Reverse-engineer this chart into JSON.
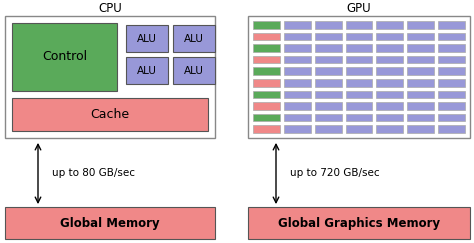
{
  "bg_color": "#ffffff",
  "cpu_title": "CPU",
  "gpu_title": "GPU",
  "control_color": "#5aaa5a",
  "control_label": "Control",
  "alu_color": "#9898d8",
  "cache_color": "#f08888",
  "cache_label": "Cache",
  "gpu_green_color": "#5aaa5a",
  "gpu_pink_color": "#f08888",
  "gpu_blue_color": "#9898d8",
  "mem_color": "#f08888",
  "mem_label": "Global Memory",
  "gmem_label": "Global Graphics Memory",
  "bw_cpu": "up to 80 GB/sec",
  "bw_gpu": "up to 720 GB/sec",
  "gpu_rows": 10,
  "gpu_cols": 7,
  "fig_w": 4.74,
  "fig_h": 2.43,
  "dpi": 100
}
